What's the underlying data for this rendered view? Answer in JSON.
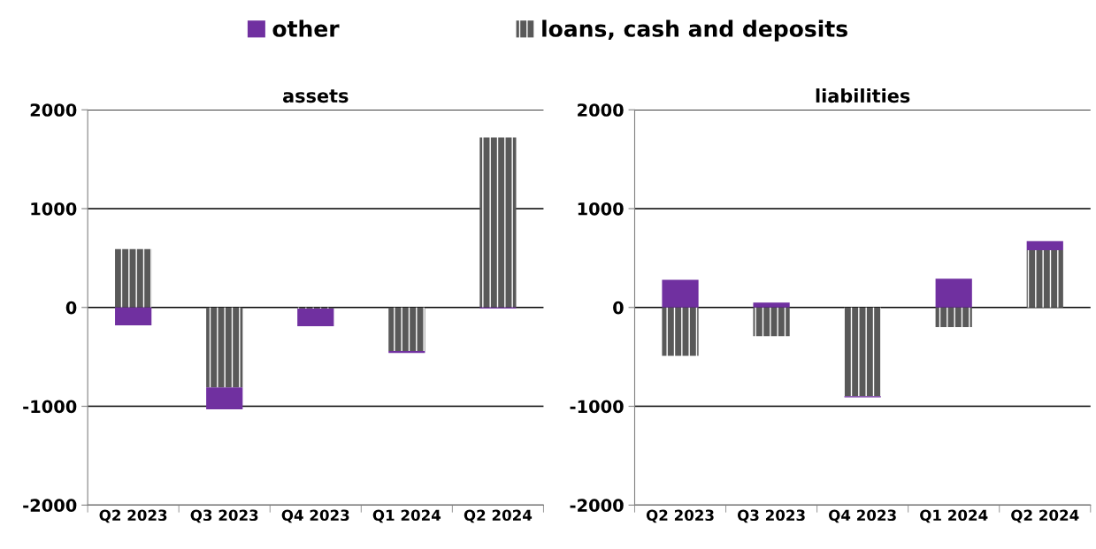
{
  "chart_data": [
    {
      "type": "bar",
      "title": "assets",
      "stacked": true,
      "categories": [
        "Q2 2023",
        "Q3 2023",
        "Q4 2023",
        "Q1 2024",
        "Q2 2024"
      ],
      "ylim": [
        -2000,
        2000
      ],
      "yticks": [
        -2000,
        -1000,
        0,
        1000,
        2000
      ],
      "grid": "y",
      "legend": "top",
      "series": [
        {
          "name": "loans, cash and deposits",
          "color": "#595959",
          "values": [
            590,
            -810,
            -10,
            -440,
            1720
          ]
        },
        {
          "name": "other",
          "color": "#7030a0",
          "values": [
            -180,
            -220,
            -180,
            -20,
            -10
          ]
        }
      ]
    },
    {
      "type": "bar",
      "title": "liabilities",
      "stacked": true,
      "categories": [
        "Q2 2023",
        "Q3 2023",
        "Q4 2023",
        "Q1 2024",
        "Q2 2024"
      ],
      "ylim": [
        -2000,
        2000
      ],
      "yticks": [
        -2000,
        -1000,
        0,
        1000,
        2000
      ],
      "grid": "y",
      "series": [
        {
          "name": "loans, cash and deposits",
          "color": "#595959",
          "values": [
            -490,
            -290,
            -900,
            -200,
            580
          ]
        },
        {
          "name": "other",
          "color": "#7030a0",
          "values": [
            280,
            50,
            -10,
            290,
            90
          ]
        }
      ]
    }
  ]
}
